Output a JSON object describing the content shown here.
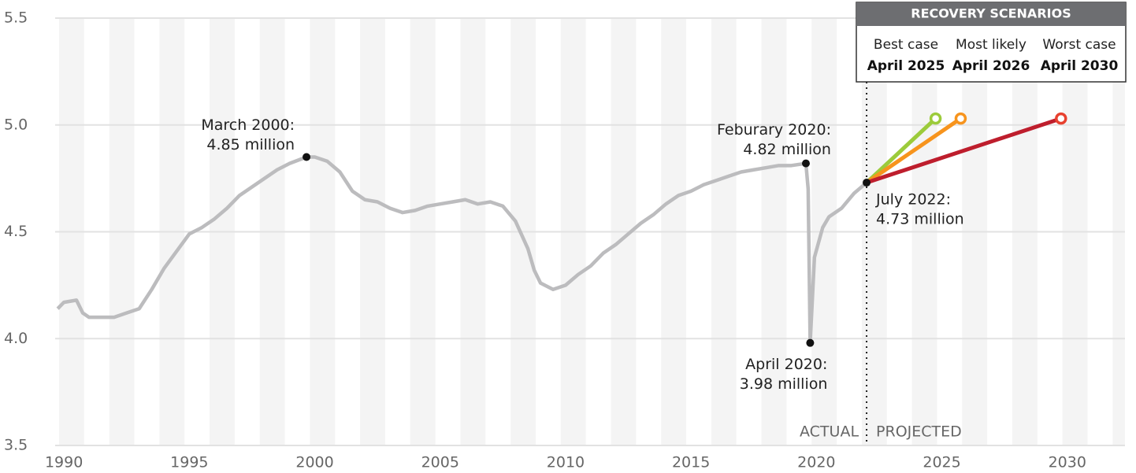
{
  "chart_data": {
    "type": "line",
    "xlim": [
      1990.15,
      2032.8
    ],
    "ylim": [
      3.5,
      5.5
    ],
    "yticks": [
      3.5,
      {
        "value": 4,
        "label": "4.0"
      },
      4.5,
      {
        "value": 5,
        "label": "5.0"
      },
      5.5
    ],
    "xticks": [
      {
        "value": 1990.5,
        "label": "1990"
      },
      {
        "value": 1995.5,
        "label": "1995"
      },
      {
        "value": 2000.5,
        "label": "2000"
      },
      {
        "value": 2005.5,
        "label": "2005"
      },
      {
        "value": 2010.5,
        "label": "2010"
      },
      {
        "value": 2015.5,
        "label": "2015"
      },
      {
        "value": 2020.5,
        "label": "2020"
      },
      {
        "value": 2025.5,
        "label": "2025"
      },
      {
        "value": 2030.5,
        "label": "2030"
      }
    ],
    "grid": true,
    "x": [
      1990.25,
      1990.5,
      1991.0,
      1991.25,
      1991.5,
      1992.0,
      1992.5,
      1993.0,
      1993.5,
      1994.0,
      1994.5,
      1995.0,
      1995.5,
      1996.0,
      1996.5,
      1997.0,
      1997.5,
      1998.0,
      1998.5,
      1999.0,
      1999.5,
      2000.17,
      2000.5,
      2001.0,
      2001.5,
      2002.0,
      2002.5,
      2003.0,
      2003.5,
      2004.0,
      2004.5,
      2005.0,
      2005.5,
      2006.0,
      2006.5,
      2007.0,
      2007.5,
      2008.0,
      2008.5,
      2009.0,
      2009.25,
      2009.5,
      2010.0,
      2010.5,
      2011.0,
      2011.5,
      2012.0,
      2012.5,
      2013.0,
      2013.5,
      2014.0,
      2014.5,
      2015.0,
      2015.5,
      2016.0,
      2016.5,
      2017.0,
      2017.5,
      2018.0,
      2018.5,
      2019.0,
      2019.5,
      2020.08,
      2020.17,
      2020.25,
      2020.42,
      2020.75,
      2021.0,
      2021.5,
      2022.0,
      2022.5
    ],
    "series": [
      {
        "name": "ACTUAL",
        "color": "#bcbcbe",
        "values": [
          4.14,
          4.17,
          4.18,
          4.12,
          4.1,
          4.1,
          4.1,
          4.12,
          4.14,
          4.23,
          4.33,
          4.41,
          4.49,
          4.52,
          4.56,
          4.61,
          4.67,
          4.71,
          4.75,
          4.79,
          4.82,
          4.85,
          4.85,
          4.83,
          4.78,
          4.69,
          4.65,
          4.64,
          4.61,
          4.59,
          4.6,
          4.62,
          4.63,
          4.64,
          4.65,
          4.63,
          4.64,
          4.62,
          4.55,
          4.42,
          4.32,
          4.26,
          4.23,
          4.25,
          4.3,
          4.34,
          4.4,
          4.44,
          4.49,
          4.54,
          4.58,
          4.63,
          4.67,
          4.69,
          4.72,
          4.74,
          4.76,
          4.78,
          4.79,
          4.8,
          4.81,
          4.81,
          4.82,
          4.7,
          3.98,
          4.38,
          4.52,
          4.57,
          4.61,
          4.68,
          4.73
        ]
      }
    ],
    "projected_label": "PROJECTED",
    "legend_title": "RECOVERY SCENARIOS",
    "scenarios": [
      {
        "name": "Best case",
        "date_label": "April 2025",
        "color": "#9ccb3b",
        "x": [
          2022.5,
          2025.25
        ],
        "values": [
          4.73,
          5.03
        ]
      },
      {
        "name": "Most likely",
        "date_label": "April 2026",
        "color": "#f7941d",
        "x": [
          2022.5,
          2026.25
        ],
        "values": [
          4.73,
          5.03
        ]
      },
      {
        "name": "Worst case",
        "date_label": "April 2030",
        "color": "#be1e2d",
        "x": [
          2022.5,
          2030.25
        ],
        "values": [
          4.73,
          5.03
        ]
      }
    ],
    "annotations": [
      {
        "lines": [
          "March 2000:",
          "4.85 million"
        ],
        "x": 2000.17,
        "y": 4.85
      },
      {
        "lines": [
          "Feburary 2020:",
          "4.82 million"
        ],
        "x": 2020.08,
        "y": 4.82
      },
      {
        "lines": [
          "April 2020:",
          "3.98 million"
        ],
        "x": 2020.25,
        "y": 3.98
      },
      {
        "lines": [
          "July 2022:",
          "4.73 million"
        ],
        "x": 2022.5,
        "y": 4.73
      }
    ]
  }
}
